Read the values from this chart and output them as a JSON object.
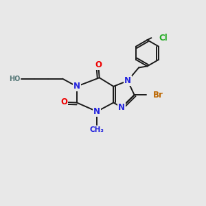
{
  "bg_color": "#e8e8e8",
  "bond_color": "#1a1a1a",
  "bond_width": 1.4,
  "atom_colors": {
    "N": "#2222dd",
    "O": "#ee0000",
    "Br": "#bb6600",
    "Cl": "#22aa22",
    "H": "#557777",
    "C": "#1a1a1a"
  },
  "fs": 8.5,
  "fs_small": 7.0,
  "fs_methyl": 7.5
}
